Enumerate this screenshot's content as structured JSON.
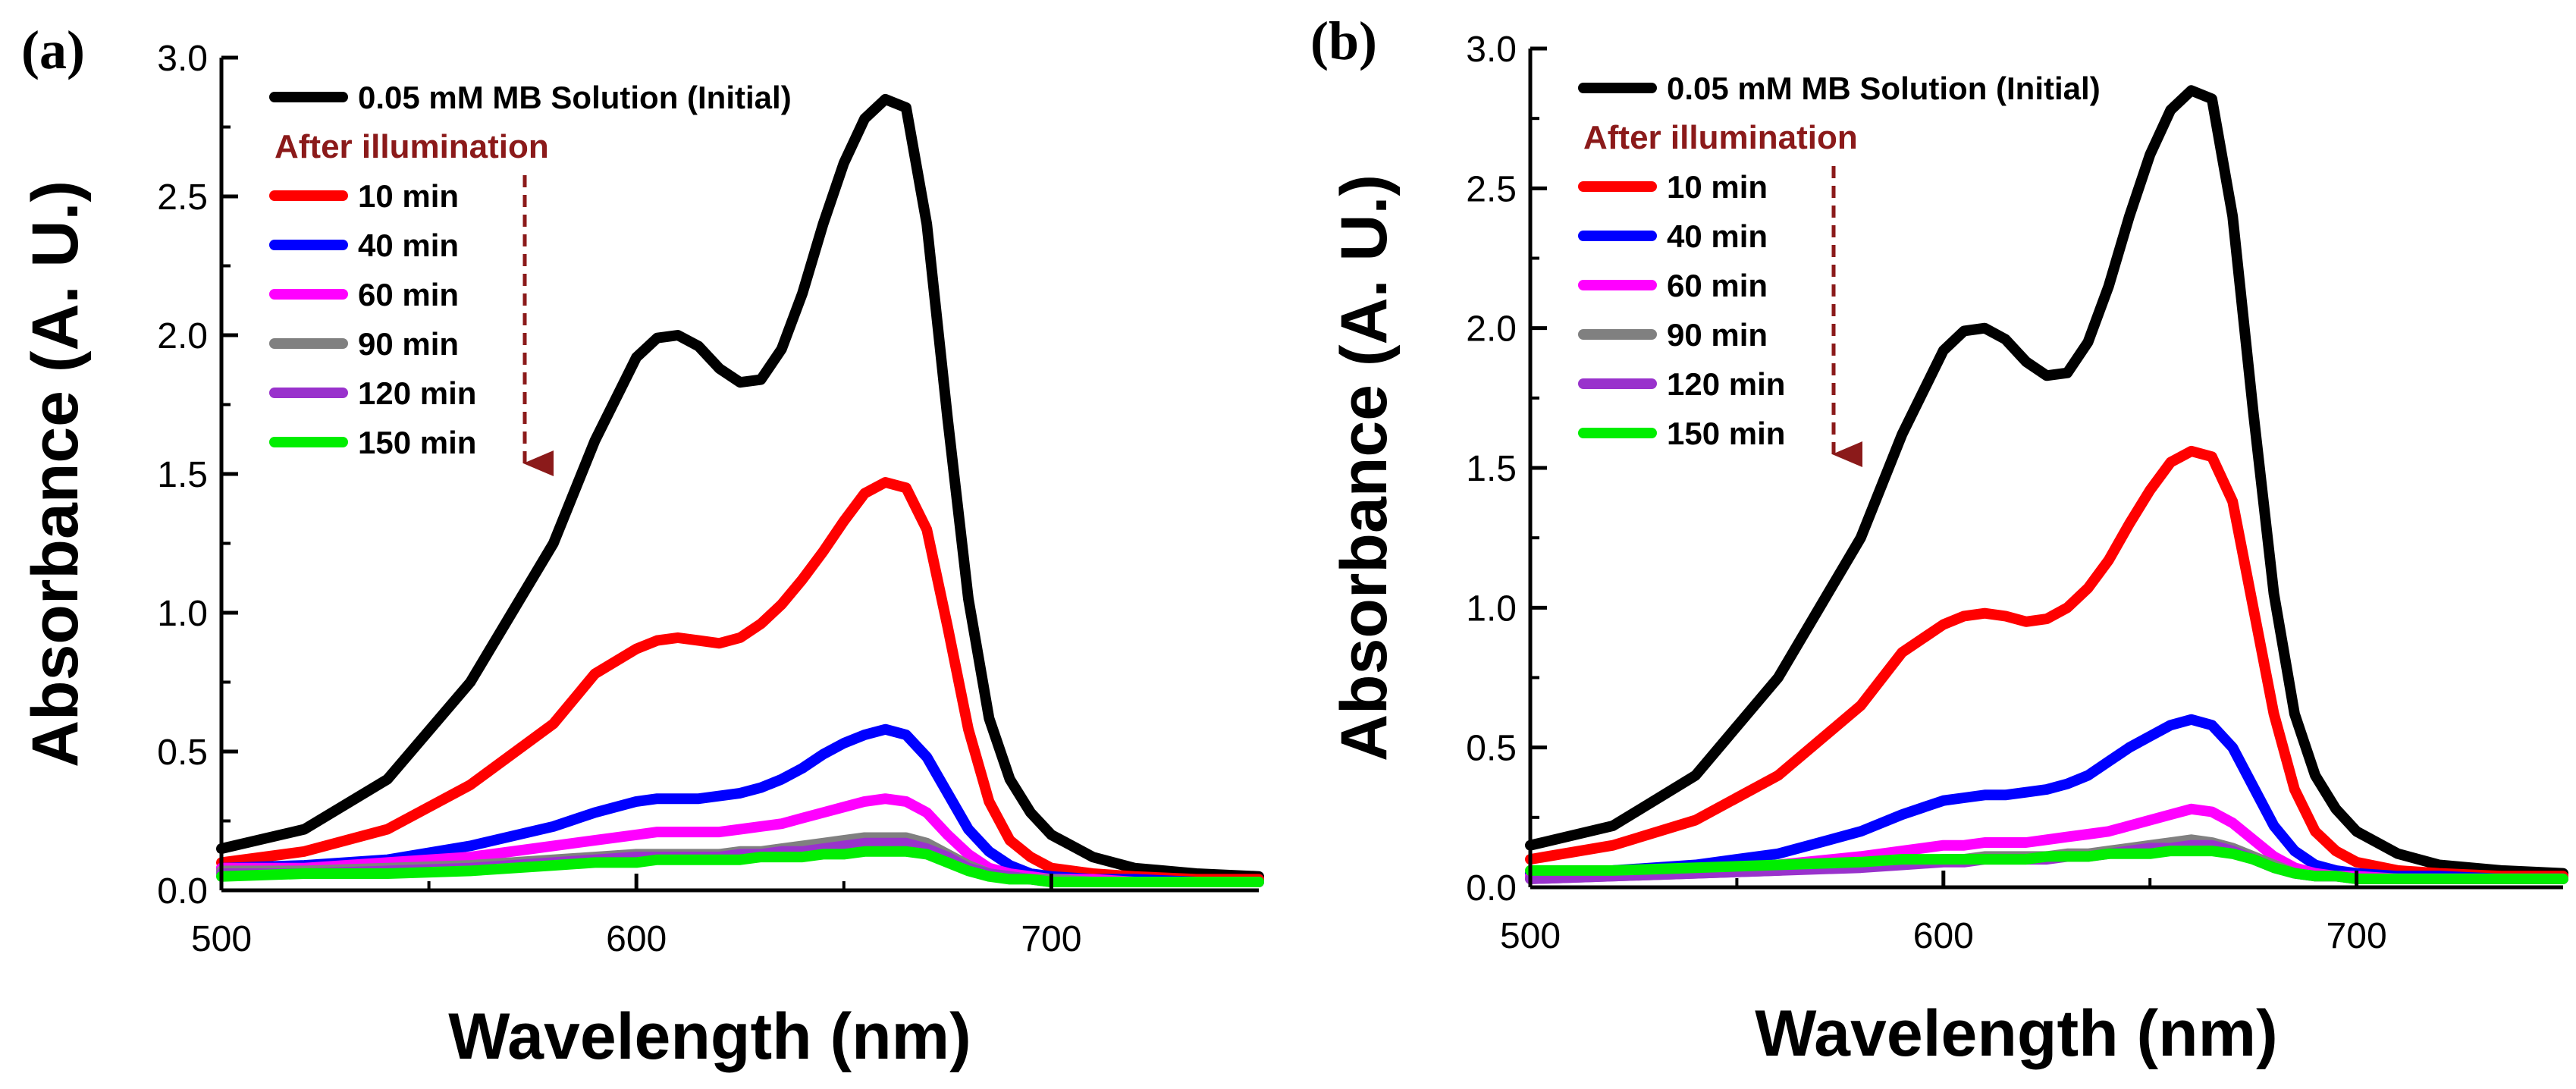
{
  "chart_data": [
    {
      "panel_label": "(a)",
      "type": "line",
      "title": "",
      "xlabel": "Wavelength (nm)",
      "ylabel": "Absorbance (A. U.)",
      "xlim": [
        500,
        750
      ],
      "ylim": [
        0,
        3.0
      ],
      "xticks": [
        "500",
        "600",
        "700"
      ],
      "yticks": [
        "0.0",
        "0.5",
        "1.0",
        "1.5",
        "2.0",
        "2.5",
        "3.0"
      ],
      "annotation": "After illumination",
      "annotation_color": "#8b1a1a",
      "x": [
        500,
        520,
        540,
        560,
        580,
        590,
        600,
        605,
        610,
        615,
        620,
        625,
        630,
        635,
        640,
        645,
        650,
        655,
        660,
        665,
        670,
        675,
        680,
        685,
        690,
        695,
        700,
        710,
        720,
        735,
        750
      ],
      "series": [
        {
          "name": "0.05 mM MB Solution (Initial)",
          "color": "#000000",
          "values": [
            0.15,
            0.22,
            0.4,
            0.75,
            1.25,
            1.62,
            1.92,
            1.99,
            2.0,
            1.96,
            1.88,
            1.83,
            1.84,
            1.95,
            2.15,
            2.4,
            2.62,
            2.78,
            2.85,
            2.82,
            2.4,
            1.7,
            1.05,
            0.62,
            0.4,
            0.28,
            0.2,
            0.12,
            0.08,
            0.06,
            0.05
          ]
        },
        {
          "name": "10 min",
          "color": "#ff0000",
          "values": [
            0.1,
            0.14,
            0.22,
            0.38,
            0.6,
            0.78,
            0.87,
            0.9,
            0.91,
            0.9,
            0.89,
            0.91,
            0.96,
            1.03,
            1.12,
            1.22,
            1.33,
            1.43,
            1.47,
            1.45,
            1.3,
            0.95,
            0.58,
            0.32,
            0.18,
            0.12,
            0.08,
            0.06,
            0.05,
            0.04,
            0.04
          ]
        },
        {
          "name": "40 min",
          "color": "#0000ff",
          "values": [
            0.08,
            0.09,
            0.11,
            0.16,
            0.23,
            0.28,
            0.32,
            0.33,
            0.33,
            0.33,
            0.34,
            0.35,
            0.37,
            0.4,
            0.44,
            0.49,
            0.53,
            0.56,
            0.58,
            0.56,
            0.48,
            0.35,
            0.22,
            0.14,
            0.09,
            0.06,
            0.05,
            0.04,
            0.04,
            0.03,
            0.03
          ]
        },
        {
          "name": "60 min",
          "color": "#ff00ff",
          "values": [
            0.08,
            0.08,
            0.1,
            0.12,
            0.16,
            0.18,
            0.2,
            0.21,
            0.21,
            0.21,
            0.21,
            0.22,
            0.23,
            0.24,
            0.26,
            0.28,
            0.3,
            0.32,
            0.33,
            0.32,
            0.28,
            0.2,
            0.13,
            0.08,
            0.06,
            0.05,
            0.04,
            0.04,
            0.03,
            0.03,
            0.03
          ]
        },
        {
          "name": "90 min",
          "color": "#808080",
          "values": [
            0.07,
            0.07,
            0.08,
            0.09,
            0.11,
            0.12,
            0.13,
            0.13,
            0.13,
            0.13,
            0.13,
            0.14,
            0.14,
            0.15,
            0.16,
            0.17,
            0.18,
            0.19,
            0.19,
            0.19,
            0.17,
            0.13,
            0.09,
            0.06,
            0.05,
            0.04,
            0.04,
            0.03,
            0.03,
            0.03,
            0.03
          ]
        },
        {
          "name": "120 min",
          "color": "#9932cc",
          "values": [
            0.06,
            0.06,
            0.07,
            0.08,
            0.1,
            0.11,
            0.12,
            0.12,
            0.12,
            0.12,
            0.12,
            0.13,
            0.13,
            0.14,
            0.14,
            0.15,
            0.16,
            0.17,
            0.17,
            0.17,
            0.15,
            0.12,
            0.08,
            0.06,
            0.05,
            0.04,
            0.03,
            0.03,
            0.03,
            0.03,
            0.03
          ]
        },
        {
          "name": "150 min",
          "color": "#00ee00",
          "values": [
            0.05,
            0.06,
            0.06,
            0.07,
            0.09,
            0.1,
            0.1,
            0.11,
            0.11,
            0.11,
            0.11,
            0.11,
            0.12,
            0.12,
            0.12,
            0.13,
            0.13,
            0.14,
            0.14,
            0.14,
            0.13,
            0.1,
            0.07,
            0.05,
            0.04,
            0.04,
            0.03,
            0.03,
            0.03,
            0.03,
            0.03
          ]
        }
      ]
    },
    {
      "panel_label": "(b)",
      "type": "line",
      "title": "",
      "xlabel": "Wavelength (nm)",
      "ylabel": "Absorbance (A. U.)",
      "xlim": [
        500,
        750
      ],
      "ylim": [
        0,
        3.0
      ],
      "xticks": [
        "500",
        "600",
        "700"
      ],
      "yticks": [
        "0.0",
        "0.5",
        "1.0",
        "1.5",
        "2.0",
        "2.5",
        "3.0"
      ],
      "annotation": "After illumination",
      "annotation_color": "#8b1a1a",
      "x": [
        500,
        520,
        540,
        560,
        580,
        590,
        600,
        605,
        610,
        615,
        620,
        625,
        630,
        635,
        640,
        645,
        650,
        655,
        660,
        665,
        670,
        675,
        680,
        685,
        690,
        695,
        700,
        710,
        720,
        735,
        750
      ],
      "series": [
        {
          "name": "0.05 mM MB Solution (Initial)",
          "color": "#000000",
          "values": [
            0.15,
            0.22,
            0.4,
            0.75,
            1.25,
            1.62,
            1.92,
            1.99,
            2.0,
            1.96,
            1.88,
            1.83,
            1.84,
            1.95,
            2.15,
            2.4,
            2.62,
            2.78,
            2.85,
            2.82,
            2.4,
            1.7,
            1.05,
            0.62,
            0.4,
            0.28,
            0.2,
            0.12,
            0.08,
            0.06,
            0.05
          ]
        },
        {
          "name": "10 min",
          "color": "#ff0000",
          "values": [
            0.1,
            0.15,
            0.24,
            0.4,
            0.65,
            0.84,
            0.94,
            0.97,
            0.98,
            0.97,
            0.95,
            0.96,
            1.0,
            1.07,
            1.17,
            1.3,
            1.42,
            1.52,
            1.56,
            1.54,
            1.38,
            1.0,
            0.62,
            0.35,
            0.2,
            0.13,
            0.09,
            0.06,
            0.05,
            0.04,
            0.04
          ]
        },
        {
          "name": "40 min",
          "color": "#0000ff",
          "values": [
            0.05,
            0.06,
            0.08,
            0.12,
            0.2,
            0.26,
            0.31,
            0.32,
            0.33,
            0.33,
            0.34,
            0.35,
            0.37,
            0.4,
            0.45,
            0.5,
            0.54,
            0.58,
            0.6,
            0.58,
            0.5,
            0.36,
            0.22,
            0.13,
            0.08,
            0.06,
            0.05,
            0.04,
            0.04,
            0.03,
            0.03
          ]
        },
        {
          "name": "60 min",
          "color": "#ff00ff",
          "values": [
            0.04,
            0.05,
            0.06,
            0.08,
            0.11,
            0.13,
            0.15,
            0.15,
            0.16,
            0.16,
            0.16,
            0.17,
            0.18,
            0.19,
            0.2,
            0.22,
            0.24,
            0.26,
            0.28,
            0.27,
            0.23,
            0.17,
            0.11,
            0.07,
            0.05,
            0.04,
            0.04,
            0.03,
            0.03,
            0.03,
            0.03
          ]
        },
        {
          "name": "90 min",
          "color": "#808080",
          "values": [
            0.03,
            0.04,
            0.05,
            0.06,
            0.08,
            0.09,
            0.1,
            0.1,
            0.11,
            0.11,
            0.11,
            0.11,
            0.12,
            0.12,
            0.13,
            0.14,
            0.15,
            0.16,
            0.17,
            0.16,
            0.14,
            0.11,
            0.08,
            0.05,
            0.04,
            0.04,
            0.03,
            0.03,
            0.03,
            0.03,
            0.03
          ]
        },
        {
          "name": "120 min",
          "color": "#9932cc",
          "values": [
            0.03,
            0.04,
            0.05,
            0.06,
            0.07,
            0.08,
            0.09,
            0.09,
            0.1,
            0.1,
            0.1,
            0.1,
            0.11,
            0.11,
            0.12,
            0.13,
            0.14,
            0.14,
            0.15,
            0.15,
            0.13,
            0.1,
            0.07,
            0.05,
            0.04,
            0.04,
            0.03,
            0.03,
            0.03,
            0.03,
            0.03
          ]
        },
        {
          "name": "150 min",
          "color": "#00ee00",
          "values": [
            0.06,
            0.06,
            0.07,
            0.08,
            0.09,
            0.1,
            0.1,
            0.1,
            0.1,
            0.1,
            0.1,
            0.11,
            0.11,
            0.11,
            0.12,
            0.12,
            0.12,
            0.13,
            0.13,
            0.13,
            0.12,
            0.1,
            0.07,
            0.05,
            0.04,
            0.04,
            0.03,
            0.03,
            0.03,
            0.03,
            0.03
          ]
        }
      ]
    }
  ]
}
